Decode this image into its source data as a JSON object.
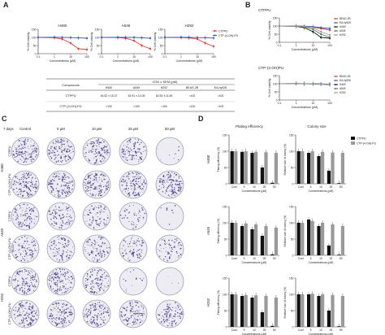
{
  "colors": {
    "red": "#e03a2f",
    "blue": "#3a58b8",
    "black": "#111111",
    "gray": "#9a9a9a",
    "green": "#3f7f3a",
    "dish_bg": "#ececf2",
    "colony": "#4a3d8c"
  },
  "panels": {
    "A": {
      "letter": "A",
      "charts": [
        {
          "title": "H460"
        },
        {
          "title": "A549"
        },
        {
          "title": "H292"
        }
      ],
      "ylabel": "% Cell viability",
      "xlabel": "Concentrations (μM)",
      "y_ticks": [
        "150",
        "100",
        "50",
        "0"
      ],
      "x_ticks": [
        "0.1",
        "1",
        "10",
        "100"
      ],
      "legend": [
        {
          "label": "CTPPU",
          "color": "red"
        },
        {
          "label": "CTP-(4-OH)-PU",
          "color": "blue"
        }
      ]
    },
    "B": {
      "letter": "B",
      "charts": [
        {
          "title": "CTPPU"
        },
        {
          "title": "CTP-(4-OH)PU"
        }
      ],
      "ylabel": "% Cell viability",
      "xlabel": "Concentrations (μM)",
      "y_ticks": [
        "150",
        "100",
        "50",
        "0"
      ],
      "x_ticks": [
        "0.1",
        "1",
        "10",
        "100"
      ],
      "legend": [
        {
          "label": "BEAS-2B",
          "color": "red"
        },
        {
          "label": "EA.hy926",
          "color": "blue"
        },
        {
          "label": "H460",
          "color": "black"
        },
        {
          "label": "A549",
          "color": "green"
        },
        {
          "label": "H292",
          "color": "gray"
        }
      ]
    },
    "table": {
      "header_left": "Compounds",
      "header_span": "IC50 ± SEM (μM)",
      "columns": [
        "H460",
        "A549",
        "H292",
        "BEAS-2B",
        "EA.hy926"
      ],
      "rows": [
        {
          "compound": "CTPPU",
          "values": [
            "45.52 ± 15.37",
            "52.91 ± 10.05",
            "62.54 ± 11.65",
            ">100",
            ">100"
          ]
        },
        {
          "compound": "CTP-(4-OH)-PU",
          "values": [
            ">100",
            ">100",
            ">100",
            ">100",
            ">100"
          ]
        }
      ]
    },
    "C": {
      "letter": "C",
      "days_label": "7 days",
      "columns": [
        "Control",
        "5 μM",
        "10 μM",
        "25 μM",
        "50 μM"
      ],
      "groups": [
        {
          "cell_line": "H460",
          "rows": [
            {
              "compound": "CTPPU",
              "densities": [
                0.95,
                0.9,
                0.85,
                0.7,
                0.05
              ]
            },
            {
              "compound": "CTP-(4-OH)-PU",
              "densities": [
                0.95,
                0.92,
                0.9,
                0.9,
                0.88
              ]
            }
          ]
        },
        {
          "cell_line": "A549",
          "rows": [
            {
              "compound": "CTPPU",
              "densities": [
                0.7,
                0.6,
                0.5,
                0.3,
                0.05
              ]
            },
            {
              "compound": "CTP-(4-OH)-PU",
              "densities": [
                0.7,
                0.65,
                0.6,
                0.5,
                0.45
              ]
            }
          ]
        },
        {
          "cell_line": "H292",
          "rows": [
            {
              "compound": "CTPPU",
              "densities": [
                0.9,
                0.85,
                0.7,
                0.1,
                0.02
              ]
            },
            {
              "compound": "CTP-(4-OH)-PU",
              "densities": [
                0.9,
                0.88,
                0.85,
                0.8,
                0.75
              ]
            }
          ]
        }
      ]
    },
    "D": {
      "letter": "D",
      "col_titles": [
        "Plating efficiency",
        "Colony size"
      ],
      "legend": [
        {
          "label": "CTPPU",
          "color": "black"
        },
        {
          "label": "CTP-(4-OH)-PU",
          "color": "gray"
        }
      ],
      "ylabel_left": "Plating efficiency (%)",
      "ylabel_right": "Relative size of colony (%)",
      "xlabel": "Concentrations (μM)",
      "y_ticks": [
        "150",
        "100",
        "50",
        "0"
      ]
    }
  },
  "chart_data": [
    {
      "type": "line",
      "title": "H460",
      "xscale": "log",
      "xlabel": "Concentrations (μM)",
      "ylabel": "% Cell viability",
      "xlim": [
        0.1,
        100
      ],
      "ylim": [
        0,
        150
      ],
      "legend": "top-right",
      "series": [
        {
          "name": "CTPPU",
          "color": "red",
          "x": [
            0.1,
            1,
            3,
            10,
            30,
            100
          ],
          "y": [
            100,
            98,
            90,
            65,
            30,
            25
          ]
        },
        {
          "name": "CTP-(4-OH)-PU",
          "color": "blue",
          "x": [
            0.1,
            1,
            3,
            10,
            30,
            100
          ],
          "y": [
            100,
            101,
            100,
            99,
            97,
            95
          ]
        }
      ]
    },
    {
      "type": "line",
      "title": "A549",
      "xscale": "log",
      "xlabel": "Concentrations (μM)",
      "ylabel": "% Cell viability",
      "xlim": [
        0.1,
        100
      ],
      "ylim": [
        0,
        150
      ],
      "series": [
        {
          "name": "CTPPU",
          "color": "red",
          "x": [
            0.1,
            1,
            3,
            10,
            30,
            100
          ],
          "y": [
            100,
            99,
            95,
            80,
            50,
            30
          ]
        },
        {
          "name": "CTP-(4-OH)-PU",
          "color": "blue",
          "x": [
            0.1,
            1,
            3,
            10,
            30,
            100
          ],
          "y": [
            100,
            101,
            100,
            100,
            98,
            95
          ]
        }
      ]
    },
    {
      "type": "line",
      "title": "H292",
      "xscale": "log",
      "xlabel": "Concentrations (μM)",
      "ylabel": "% Cell viability",
      "xlim": [
        0.1,
        100
      ],
      "ylim": [
        0,
        150
      ],
      "legend": "top-right",
      "series": [
        {
          "name": "CTPPU",
          "color": "red",
          "x": [
            0.1,
            1,
            3,
            10,
            30,
            100
          ],
          "y": [
            100,
            99,
            97,
            90,
            65,
            45
          ]
        },
        {
          "name": "CTP-(4-OH)-PU",
          "color": "blue",
          "x": [
            0.1,
            1,
            3,
            10,
            30,
            100
          ],
          "y": [
            100,
            101,
            100,
            99,
            98,
            96
          ]
        }
      ]
    },
    {
      "type": "line",
      "title": "CTPPU",
      "xscale": "log",
      "xlabel": "Concentrations (μM)",
      "ylabel": "% Cell viability",
      "xlim": [
        0.1,
        100
      ],
      "ylim": [
        0,
        150
      ],
      "legend": "right",
      "series": [
        {
          "name": "BEAS-2B",
          "color": "red",
          "x": [
            0.1,
            1,
            3,
            10,
            30,
            100
          ],
          "y": [
            100,
            100,
            98,
            93,
            85,
            75
          ]
        },
        {
          "name": "EA.hy926",
          "color": "blue",
          "x": [
            0.1,
            1,
            3,
            10,
            30,
            100
          ],
          "y": [
            100,
            100,
            99,
            96,
            90,
            85
          ]
        },
        {
          "name": "H460",
          "color": "black",
          "x": [
            0.1,
            1,
            3,
            10,
            30,
            100
          ],
          "y": [
            100,
            98,
            90,
            65,
            30,
            25
          ]
        },
        {
          "name": "A549",
          "color": "green",
          "x": [
            0.1,
            1,
            3,
            10,
            30,
            100
          ],
          "y": [
            100,
            99,
            95,
            80,
            50,
            30
          ]
        },
        {
          "name": "H292",
          "color": "gray",
          "x": [
            0.1,
            1,
            3,
            10,
            30,
            100
          ],
          "y": [
            100,
            99,
            97,
            90,
            65,
            45
          ]
        }
      ]
    },
    {
      "type": "line",
      "title": "CTP-(4-OH)PU",
      "xscale": "log",
      "xlabel": "Concentrations (μM)",
      "ylabel": "% Cell viability",
      "xlim": [
        0.1,
        100
      ],
      "ylim": [
        0,
        150
      ],
      "legend": "right",
      "series": [
        {
          "name": "BEAS-2B",
          "color": "red",
          "x": [
            0.1,
            1,
            3,
            10,
            30,
            100
          ],
          "y": [
            100,
            101,
            100,
            99,
            98,
            97
          ]
        },
        {
          "name": "EA.hy926",
          "color": "blue",
          "x": [
            0.1,
            1,
            3,
            10,
            30,
            100
          ],
          "y": [
            100,
            100,
            101,
            100,
            99,
            98
          ]
        },
        {
          "name": "H460",
          "color": "black",
          "x": [
            0.1,
            1,
            3,
            10,
            30,
            100
          ],
          "y": [
            100,
            101,
            100,
            99,
            97,
            95
          ]
        },
        {
          "name": "A549",
          "color": "green",
          "x": [
            0.1,
            1,
            3,
            10,
            30,
            100
          ],
          "y": [
            100,
            101,
            100,
            100,
            98,
            95
          ]
        },
        {
          "name": "H292",
          "color": "gray",
          "x": [
            0.1,
            1,
            3,
            10,
            30,
            100
          ],
          "y": [
            100,
            101,
            100,
            99,
            98,
            96
          ]
        }
      ]
    },
    {
      "type": "bar",
      "title": "Plating efficiency",
      "row": "H460",
      "categories": [
        "Cont",
        "5",
        "10",
        "25",
        "50"
      ],
      "xlabel": "Concentrations (μM)",
      "ylabel": "Plating efficiency (%)",
      "ylim": [
        0,
        150
      ],
      "series": [
        {
          "name": "CTPPU",
          "color": "black",
          "values": [
            100,
            98,
            95,
            50,
            3
          ]
        },
        {
          "name": "CTP-(4-OH)-PU",
          "color": "gray",
          "values": [
            100,
            100,
            98,
            97,
            95
          ]
        }
      ]
    },
    {
      "type": "bar",
      "title": "Colony size",
      "row": "H460",
      "categories": [
        "Cont",
        "5",
        "10",
        "25",
        "50"
      ],
      "xlabel": "Concentrations (μM)",
      "ylabel": "Relative size of colony (%)",
      "ylim": [
        0,
        150
      ],
      "series": [
        {
          "name": "CTPPU",
          "color": "black",
          "values": [
            100,
            95,
            85,
            40,
            2
          ]
        },
        {
          "name": "CTP-(4-OH)-PU",
          "color": "gray",
          "values": [
            100,
            100,
            98,
            96,
            95
          ]
        }
      ]
    },
    {
      "type": "bar",
      "title": "Plating efficiency",
      "row": "A549",
      "categories": [
        "Cont",
        "5",
        "10",
        "25",
        "50"
      ],
      "xlabel": "Concentrations (μM)",
      "ylabel": "Plating efficiency (%)",
      "ylim": [
        0,
        150
      ],
      "series": [
        {
          "name": "CTPPU",
          "color": "black",
          "values": [
            100,
            90,
            80,
            60,
            3
          ]
        },
        {
          "name": "CTP-(4-OH)-PU",
          "color": "gray",
          "values": [
            100,
            98,
            95,
            90,
            85
          ]
        }
      ]
    },
    {
      "type": "bar",
      "title": "Colony size",
      "row": "A549",
      "categories": [
        "Cont",
        "5",
        "10",
        "25",
        "50"
      ],
      "xlabel": "Concentrations (μM)",
      "ylabel": "Relative size of colony (%)",
      "ylim": [
        0,
        150
      ],
      "series": [
        {
          "name": "CTPPU",
          "color": "black",
          "values": [
            100,
            110,
            90,
            30,
            2
          ]
        },
        {
          "name": "CTP-(4-OH)-PU",
          "color": "gray",
          "values": [
            100,
            105,
            100,
            95,
            90
          ]
        }
      ]
    },
    {
      "type": "bar",
      "title": "Plating efficiency",
      "row": "H292",
      "categories": [
        "Cont",
        "5",
        "10",
        "25",
        "50"
      ],
      "xlabel": "Concentrations (μM)",
      "ylabel": "Plating efficiency (%)",
      "ylim": [
        0,
        150
      ],
      "series": [
        {
          "name": "CTPPU",
          "color": "black",
          "values": [
            100,
            95,
            90,
            45,
            3
          ]
        },
        {
          "name": "CTP-(4-OH)-PU",
          "color": "gray",
          "values": [
            100,
            98,
            97,
            95,
            90
          ]
        }
      ]
    },
    {
      "type": "bar",
      "title": "Colony size",
      "row": "H292",
      "categories": [
        "Cont",
        "5",
        "10",
        "25",
        "50"
      ],
      "xlabel": "Concentrations (μM)",
      "ylabel": "Relative size of colony (%)",
      "ylim": [
        0,
        150
      ],
      "series": [
        {
          "name": "CTPPU",
          "color": "black",
          "values": [
            100,
            100,
            95,
            50,
            2
          ]
        },
        {
          "name": "CTP-(4-OH)-PU",
          "color": "gray",
          "values": [
            100,
            102,
            100,
            98,
            95
          ]
        }
      ]
    }
  ]
}
